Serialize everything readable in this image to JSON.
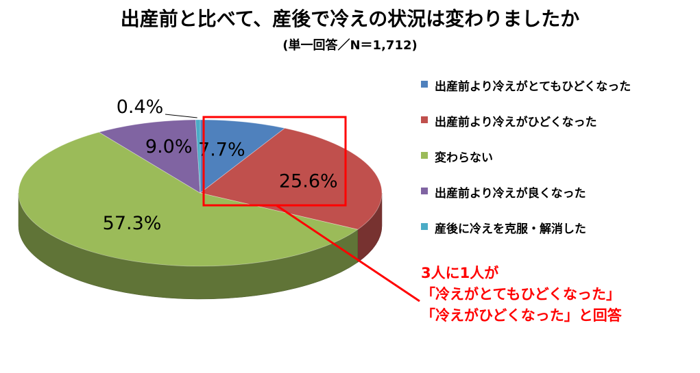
{
  "chart_data": {
    "type": "pie",
    "title": "出産前と比べて、産後で冷えの状況は変わりましたか",
    "subtitle": "(単一回答／N＝1,712)",
    "slices": [
      {
        "label": "出産前より冷えがとてもひどくなった",
        "value": 7.7,
        "value_label": "7.7%",
        "color": "#4f81bd"
      },
      {
        "label": "出産前より冷えがひどくなった",
        "value": 25.6,
        "value_label": "25.6%",
        "color": "#c0504d"
      },
      {
        "label": "変わらない",
        "value": 57.3,
        "value_label": "57.3%",
        "color": "#9bbb59"
      },
      {
        "label": "出産前より冷えが良くなった",
        "value": 9.0,
        "value_label": "9.0%",
        "color": "#8064a2"
      },
      {
        "label": "産後に冷えを克服・解消した",
        "value": 0.4,
        "value_label": "0.4%",
        "color": "#4bacc6"
      }
    ],
    "legend_position": "right",
    "highlight_color": "#ff0000",
    "annotation": [
      "3人に1人が",
      "「冷えがとてもひどくなった」",
      "「冷えがひどくなった」と回答"
    ]
  }
}
